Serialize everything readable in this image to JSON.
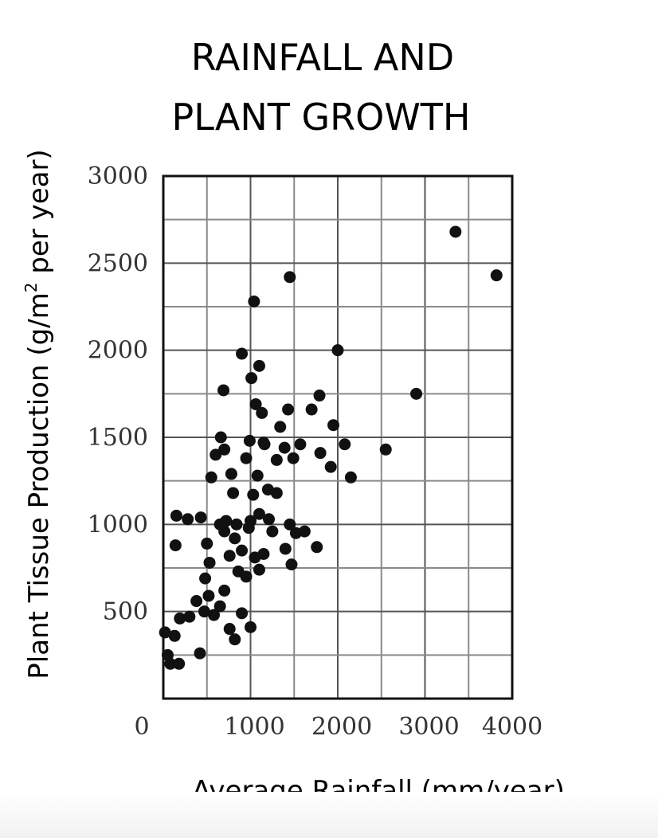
{
  "chart_data": {
    "type": "scatter",
    "title_line1": "RAINFALL AND",
    "title_line2": "PLANT GROWTH",
    "xlabel": "Average Rainfall (mm/year)",
    "ylabel_main": "Plant Tissue Production (g/m",
    "ylabel_sup": "2",
    "ylabel_tail": " per year)",
    "xlim": [
      0,
      4000
    ],
    "ylim": [
      0,
      3000
    ],
    "x_ticks": [
      0,
      1000,
      2000,
      3000,
      4000
    ],
    "y_ticks": [
      500,
      1000,
      1500,
      2000,
      2500,
      3000
    ],
    "grid": true,
    "points": [
      [
        20,
        380
      ],
      [
        130,
        360
      ],
      [
        50,
        250
      ],
      [
        80,
        200
      ],
      [
        180,
        200
      ],
      [
        150,
        1050
      ],
      [
        280,
        1030
      ],
      [
        140,
        880
      ],
      [
        430,
        1040
      ],
      [
        190,
        460
      ],
      [
        300,
        470
      ],
      [
        380,
        560
      ],
      [
        470,
        500
      ],
      [
        420,
        260
      ],
      [
        520,
        590
      ],
      [
        480,
        690
      ],
      [
        530,
        780
      ],
      [
        580,
        480
      ],
      [
        650,
        530
      ],
      [
        700,
        620
      ],
      [
        760,
        400
      ],
      [
        820,
        340
      ],
      [
        900,
        490
      ],
      [
        1000,
        410
      ],
      [
        500,
        890
      ],
      [
        550,
        1270
      ],
      [
        600,
        1400
      ],
      [
        660,
        1500
      ],
      [
        690,
        1770
      ],
      [
        700,
        1430
      ],
      [
        720,
        1020
      ],
      [
        780,
        1290
      ],
      [
        800,
        1180
      ],
      [
        840,
        1000
      ],
      [
        650,
        1000
      ],
      [
        700,
        960
      ],
      [
        760,
        820
      ],
      [
        860,
        730
      ],
      [
        820,
        920
      ],
      [
        900,
        850
      ],
      [
        950,
        700
      ],
      [
        980,
        980
      ],
      [
        1000,
        1020
      ],
      [
        1050,
        810
      ],
      [
        1100,
        740
      ],
      [
        1150,
        830
      ],
      [
        900,
        1980
      ],
      [
        950,
        1380
      ],
      [
        990,
        1480
      ],
      [
        1010,
        1840
      ],
      [
        1040,
        2280
      ],
      [
        1060,
        1690
      ],
      [
        1100,
        1910
      ],
      [
        1130,
        1640
      ],
      [
        1080,
        1280
      ],
      [
        1100,
        1060
      ],
      [
        1160,
        1460
      ],
      [
        1200,
        1200
      ],
      [
        1210,
        1030
      ],
      [
        1250,
        960
      ],
      [
        1300,
        1370
      ],
      [
        1340,
        1560
      ],
      [
        1300,
        1180
      ],
      [
        1390,
        1440
      ],
      [
        1430,
        1660
      ],
      [
        1400,
        860
      ],
      [
        1450,
        1000
      ],
      [
        1470,
        770
      ],
      [
        1490,
        1380
      ],
      [
        1450,
        2420
      ],
      [
        1520,
        950
      ],
      [
        1570,
        1460
      ],
      [
        1620,
        960
      ],
      [
        1700,
        1660
      ],
      [
        1760,
        870
      ],
      [
        1790,
        1740
      ],
      [
        1800,
        1410
      ],
      [
        1920,
        1330
      ],
      [
        1950,
        1570
      ],
      [
        2000,
        2000
      ],
      [
        2080,
        1460
      ],
      [
        2150,
        1270
      ],
      [
        2550,
        1430
      ],
      [
        2900,
        1750
      ],
      [
        3350,
        2680
      ],
      [
        3820,
        2430
      ],
      [
        1150,
        1470
      ],
      [
        1030,
        1170
      ]
    ]
  }
}
